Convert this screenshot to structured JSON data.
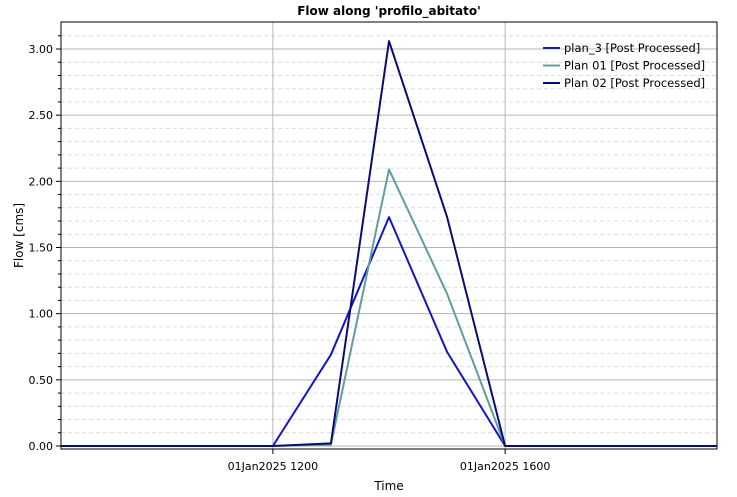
{
  "chart_data": {
    "type": "line",
    "title": "Flow along 'profilo_abitato'",
    "xlabel": "Time",
    "ylabel": "Flow [cms]",
    "ylim": [
      0.0,
      3.1
    ],
    "y_ticks": [
      "0.00",
      "0.50",
      "1.00",
      "1.50",
      "2.00",
      "2.50",
      "3.00"
    ],
    "y_tick_values": [
      0,
      0.5,
      1.0,
      1.5,
      2.0,
      2.5,
      3.0
    ],
    "x_range_hours": [
      8.35,
      19.65
    ],
    "x_ticks": [
      {
        "label": "01Jan2025 1200",
        "hour": 12
      },
      {
        "label": "01Jan2025 1600",
        "hour": 16
      }
    ],
    "grid": true,
    "legend_position": "top-right",
    "series": [
      {
        "name": "plan_3 [Post Processed]",
        "color": "#1414c8",
        "points": [
          [
            8.35,
            0
          ],
          [
            12,
            0
          ],
          [
            13,
            0.69
          ],
          [
            14,
            1.73
          ],
          [
            15,
            0.71
          ],
          [
            16,
            0
          ],
          [
            19.65,
            0
          ]
        ]
      },
      {
        "name": "Plan 01 [Post Processed]",
        "color": "#5f9ea0",
        "points": [
          [
            8.35,
            0
          ],
          [
            12,
            0
          ],
          [
            13,
            0.01
          ],
          [
            14,
            2.09
          ],
          [
            15,
            1.15
          ],
          [
            16,
            0
          ],
          [
            19.65,
            0
          ]
        ]
      },
      {
        "name": "Plan 02 [Post Processed]",
        "color": "#0b0b78",
        "points": [
          [
            8.35,
            0
          ],
          [
            12,
            0
          ],
          [
            13,
            0.02
          ],
          [
            14,
            3.06
          ],
          [
            15,
            1.73
          ],
          [
            16,
            0
          ],
          [
            19.65,
            0
          ]
        ]
      }
    ]
  }
}
